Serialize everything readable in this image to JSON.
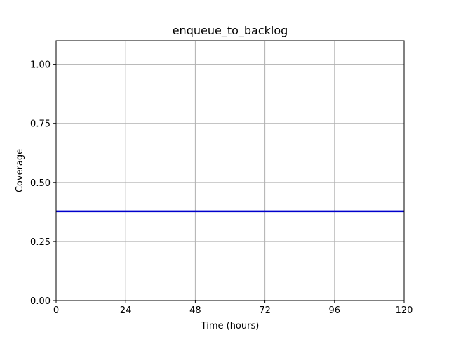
{
  "chart_data": {
    "type": "line",
    "title": "enqueue_to_backlog",
    "xlabel": "Time (hours)",
    "ylabel": "Coverage",
    "xlim": [
      0,
      120
    ],
    "ylim": [
      0,
      1.1
    ],
    "xticks": [
      0,
      24,
      48,
      72,
      96,
      120
    ],
    "xtick_labels": [
      "0",
      "24",
      "48",
      "72",
      "96",
      "120"
    ],
    "yticks": [
      0,
      0.25,
      0.5,
      0.75,
      1.0
    ],
    "ytick_labels": [
      "0.00",
      "0.25",
      "0.50",
      "0.75",
      "1.00"
    ],
    "grid": true,
    "legend": "none",
    "series": [
      {
        "name": "coverage",
        "color": "#0000cc",
        "x": [
          0,
          120
        ],
        "y": [
          0.378,
          0.378
        ]
      }
    ]
  }
}
